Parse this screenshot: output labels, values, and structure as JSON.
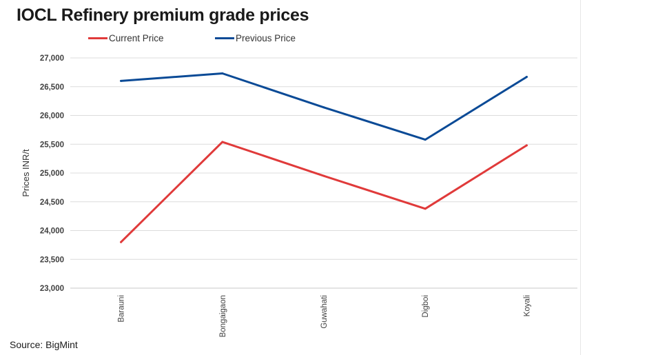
{
  "chart_data": {
    "type": "line",
    "title": "IOCL Refinery premium grade prices",
    "xlabel": "",
    "ylabel": "Prices INR/t",
    "categories": [
      "Barauni",
      "Bongaigaon",
      "Guwahati",
      "Digboi",
      "Koyali"
    ],
    "series": [
      {
        "name": "Current Price",
        "color": "#e03a3a",
        "values": [
          23800,
          25540,
          24950,
          24380,
          25480
        ]
      },
      {
        "name": "Previous Price",
        "color": "#0a4a96",
        "values": [
          26600,
          26730,
          26140,
          25580,
          26670
        ]
      }
    ],
    "ylim": [
      23000,
      27000
    ],
    "yticks": [
      23000,
      23500,
      24000,
      24500,
      25000,
      25500,
      26000,
      26500,
      27000
    ],
    "ytick_labels": [
      "23,000",
      "23,500",
      "24,000",
      "24,500",
      "25,000",
      "25,500",
      "26,000",
      "26,500",
      "27,000"
    ],
    "grid": true,
    "legend_position": "top-left",
    "source": "Source: BigMint"
  }
}
